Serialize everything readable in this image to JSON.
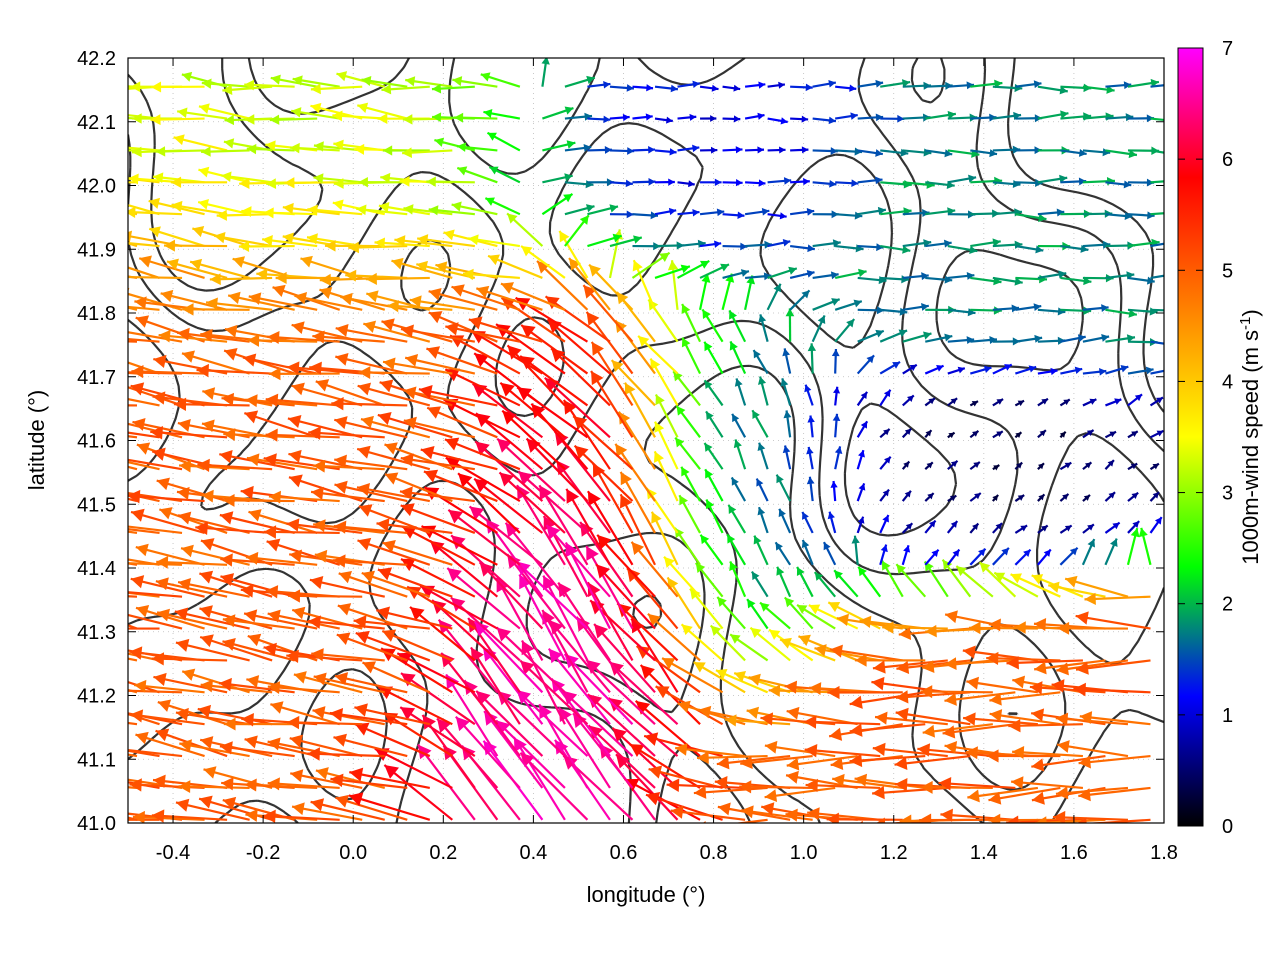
{
  "chart_data": {
    "type": "vector-field",
    "title": "",
    "xlabel": "longitude (°)",
    "ylabel": "latitude (°)",
    "xlim": [
      -0.5,
      1.8
    ],
    "ylim": [
      41.0,
      42.2
    ],
    "xticks": [
      "-0.4",
      "-0.2",
      "0.0",
      "0.2",
      "0.4",
      "0.6",
      "0.8",
      "1.0",
      "1.2",
      "1.4",
      "1.6",
      "1.8"
    ],
    "xtick_values": [
      -0.4,
      -0.2,
      0.0,
      0.2,
      0.4,
      0.6,
      0.8,
      1.0,
      1.2,
      1.4,
      1.6,
      1.8
    ],
    "yticks": [
      "41.0",
      "41.1",
      "41.2",
      "41.3",
      "41.4",
      "41.5",
      "41.6",
      "41.7",
      "41.8",
      "41.9",
      "42.0",
      "42.1",
      "42.2"
    ],
    "ytick_values": [
      41.0,
      41.1,
      41.2,
      41.3,
      41.4,
      41.5,
      41.6,
      41.7,
      41.8,
      41.9,
      42.0,
      42.1,
      42.2
    ],
    "grid": true,
    "colorbar": {
      "label_main": "1000m-wind speed (m s",
      "label_sup": "-1",
      "label_end": ")",
      "range": [
        0,
        7
      ],
      "ticks": [
        "0",
        "1",
        "2",
        "3",
        "4",
        "5",
        "6",
        "7"
      ],
      "tick_values": [
        0,
        1,
        2,
        3,
        4,
        5,
        6,
        7
      ],
      "palette": [
        "#000000",
        "#0000ff",
        "#00ff00",
        "#ffff00",
        "#ff8000",
        "#ff0000",
        "#ff00ff"
      ]
    },
    "wind_field": {
      "description_units": "m s-1",
      "regions": [
        {
          "zone": "northwest",
          "lon": [
            -0.5,
            0.3
          ],
          "lat": [
            41.9,
            42.2
          ],
          "speed": 3.2,
          "direction_to": "west"
        },
        {
          "zone": "west-central",
          "lon": [
            -0.5,
            0.4
          ],
          "lat": [
            41.4,
            41.9
          ],
          "speed": 5.0,
          "direction_to": "west-northwest"
        },
        {
          "zone": "south-central",
          "lon": [
            0.35,
            0.75
          ],
          "lat": [
            41.0,
            41.6
          ],
          "speed": 6.5,
          "direction_to": "northwest"
        },
        {
          "zone": "north-central",
          "lon": [
            0.3,
            1.0
          ],
          "lat": [
            41.9,
            42.2
          ],
          "speed": 1.0,
          "direction_to": "east"
        },
        {
          "zone": "northeast",
          "lon": [
            1.0,
            1.8
          ],
          "lat": [
            41.7,
            42.0
          ],
          "speed": 1.5,
          "direction_to": "east"
        },
        {
          "zone": "east-central",
          "lon": [
            1.0,
            1.8
          ],
          "lat": [
            41.4,
            41.7
          ],
          "speed": 0.5,
          "direction_to": "variable"
        },
        {
          "zone": "southeast",
          "lon": [
            0.9,
            1.8
          ],
          "lat": [
            41.0,
            41.3
          ],
          "speed": 5.0,
          "direction_to": "west"
        }
      ]
    },
    "contour_color": "#333333"
  }
}
